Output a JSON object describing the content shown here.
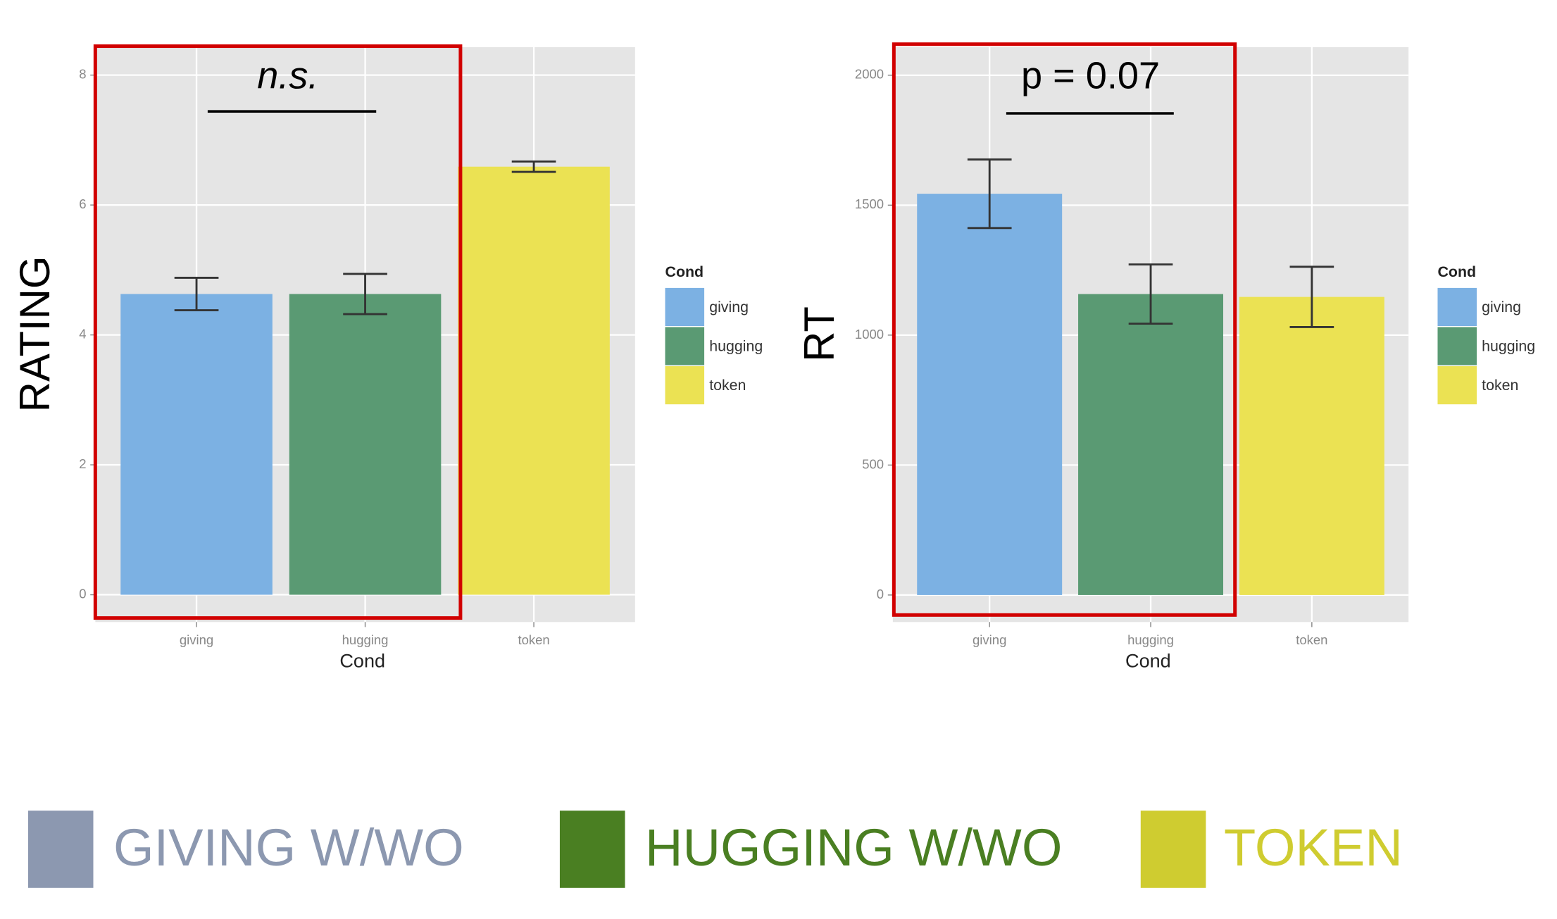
{
  "chart_data": [
    {
      "type": "bar",
      "y_label": "RATING",
      "x_label": "Cond",
      "legend_title": "Cond",
      "annotation": "n.s.",
      "categories": [
        "giving",
        "hugging",
        "token"
      ],
      "values": [
        4.63,
        4.63,
        6.59
      ],
      "errors": [
        0.25,
        0.31,
        0.08
      ],
      "colors": [
        "#7cb1e3",
        "#5a9a73",
        "#ebe253"
      ],
      "ylim": [
        -0.42,
        8.43
      ],
      "yticks": [
        0,
        2,
        4,
        6,
        8
      ],
      "grid": true
    },
    {
      "type": "bar",
      "y_label": "RT",
      "x_label": "Cond",
      "legend_title": "Cond",
      "annotation": "p = 0.07",
      "categories": [
        "giving",
        "hugging",
        "token"
      ],
      "values": [
        1544,
        1158,
        1147
      ],
      "errors": [
        132,
        114,
        116
      ],
      "colors": [
        "#7cb1e3",
        "#5a9a73",
        "#ebe253"
      ],
      "ylim": [
        -104,
        2108
      ],
      "yticks": [
        0,
        500,
        1000,
        1500,
        2000
      ],
      "grid": true
    }
  ],
  "footer_legend": [
    {
      "label": "GIVING W/WO",
      "color": "#8c98b0"
    },
    {
      "label": "HUGGING W/WO",
      "color": "#4a7f22"
    },
    {
      "label": "TOKEN",
      "color": "#cfcc30"
    }
  ]
}
